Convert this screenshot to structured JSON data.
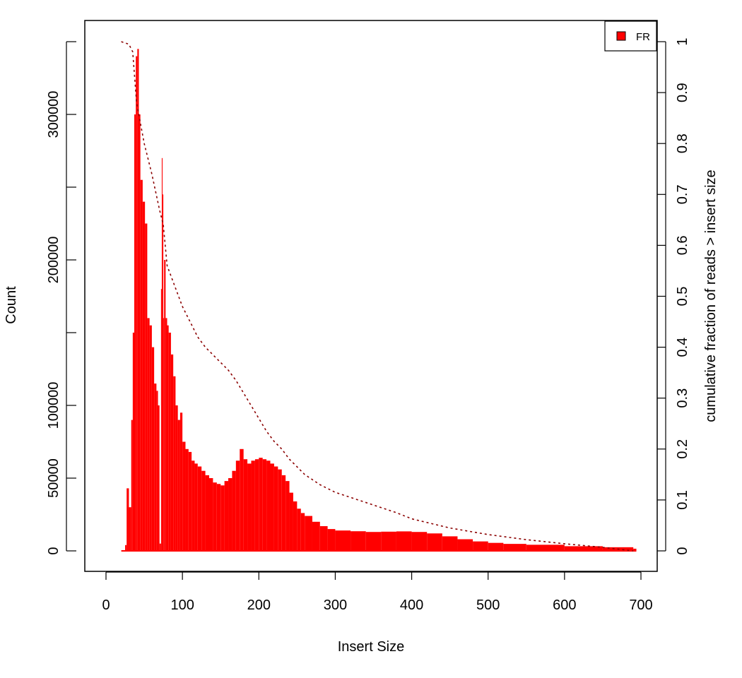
{
  "chart_data": {
    "type": "bar",
    "xlabel": "Insert Size",
    "ylabel": "Count",
    "y2label": "cumulative fraction of reads > insert size",
    "xlim": [
      0,
      700
    ],
    "ylim": [
      0,
      350000
    ],
    "y2lim": [
      0,
      1
    ],
    "x_ticks": [
      0,
      100,
      200,
      300,
      400,
      500,
      600,
      700
    ],
    "y_ticks": [
      0,
      50000,
      100000,
      200000,
      300000
    ],
    "y_ticks_minor": [
      150000,
      250000,
      350000
    ],
    "y2_ticks": [
      0,
      0.1,
      0.2,
      0.3,
      0.4,
      0.5,
      0.6,
      0.7,
      0.8,
      0.9,
      1
    ],
    "y2_tick_labels": [
      "0",
      "0.1",
      "0.2",
      "0.3",
      "0.4",
      "0.5",
      "0.6",
      "0.7",
      "0.8",
      "0.9",
      "1"
    ],
    "grid": false,
    "legend": {
      "position": "top-right",
      "entries": [
        {
          "label": "FR",
          "color": "#ff0000"
        }
      ]
    },
    "histogram": {
      "name": "FR",
      "color": "#ff0000",
      "x": [
        20,
        25,
        27,
        30,
        33,
        35,
        37,
        39,
        41,
        43,
        45,
        48,
        51,
        54,
        57,
        60,
        63,
        66,
        68,
        70,
        72,
        73,
        74,
        75,
        76,
        78,
        80,
        82,
        85,
        88,
        91,
        94,
        97,
        100,
        104,
        108,
        112,
        116,
        120,
        125,
        130,
        135,
        140,
        145,
        150,
        155,
        160,
        165,
        170,
        175,
        180,
        185,
        190,
        195,
        200,
        205,
        210,
        215,
        220,
        225,
        230,
        235,
        240,
        245,
        250,
        255,
        260,
        270,
        280,
        290,
        300,
        320,
        340,
        360,
        380,
        400,
        420,
        440,
        460,
        480,
        500,
        520,
        550,
        600,
        650,
        690
      ],
      "values": [
        0,
        4000,
        43000,
        30000,
        90000,
        150000,
        300000,
        340000,
        345000,
        300000,
        255000,
        240000,
        225000,
        160000,
        155000,
        140000,
        115000,
        110000,
        100000,
        5000,
        180000,
        270000,
        245000,
        160000,
        200000,
        160000,
        155000,
        150000,
        135000,
        120000,
        100000,
        90000,
        95000,
        75000,
        70000,
        68000,
        62000,
        60000,
        58000,
        55000,
        52000,
        50000,
        47000,
        46000,
        45000,
        48000,
        50000,
        55000,
        62000,
        70000,
        63000,
        60000,
        62000,
        63000,
        64000,
        63000,
        62000,
        60000,
        58000,
        56000,
        52000,
        48000,
        40000,
        34000,
        29000,
        26000,
        24000,
        20000,
        17000,
        15000,
        14000,
        13500,
        13000,
        13200,
        13400,
        13000,
        12000,
        10000,
        8000,
        6500,
        5500,
        4800,
        4200,
        3200,
        2500,
        1500
      ]
    },
    "cumulative": {
      "name": "",
      "color": "#8b0000",
      "style": "dotted",
      "x": [
        20,
        30,
        35,
        40,
        50,
        60,
        70,
        75,
        80,
        90,
        100,
        110,
        120,
        130,
        140,
        150,
        160,
        170,
        180,
        190,
        200,
        210,
        220,
        230,
        240,
        250,
        260,
        280,
        300,
        330,
        350,
        380,
        400,
        450,
        500,
        550,
        600,
        650,
        690
      ],
      "y": [
        1.0,
        0.995,
        0.98,
        0.88,
        0.8,
        0.74,
        0.67,
        0.64,
        0.56,
        0.52,
        0.48,
        0.45,
        0.42,
        0.4,
        0.385,
        0.37,
        0.355,
        0.335,
        0.31,
        0.285,
        0.26,
        0.235,
        0.215,
        0.2,
        0.18,
        0.165,
        0.15,
        0.13,
        0.115,
        0.1,
        0.09,
        0.075,
        0.063,
        0.045,
        0.032,
        0.022,
        0.014,
        0.007,
        0.0
      ]
    }
  }
}
